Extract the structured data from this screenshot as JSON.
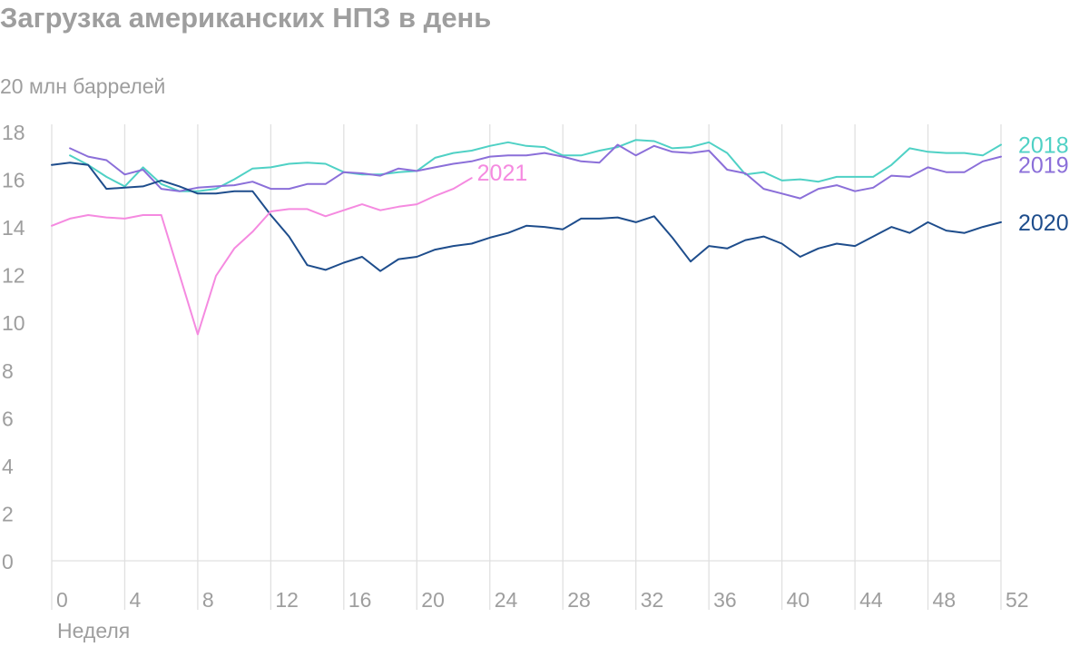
{
  "chart_data": {
    "type": "line",
    "title": "Загрузка американских НПЗ в день",
    "ylabel": "20 млн баррелей",
    "xlabel": "Неделя",
    "xlim": [
      0,
      52
    ],
    "ylim": [
      0,
      18
    ],
    "xticks": [
      0,
      4,
      8,
      12,
      16,
      20,
      24,
      28,
      32,
      36,
      40,
      44,
      48,
      52
    ],
    "yticks": [
      0,
      2,
      4,
      6,
      8,
      10,
      12,
      14,
      16,
      18
    ],
    "grid": "vertical",
    "series": [
      {
        "name": "2018",
        "color": "#4fd1c5",
        "x": [
          1,
          2,
          3,
          4,
          5,
          6,
          7,
          8,
          9,
          10,
          11,
          12,
          13,
          14,
          15,
          16,
          17,
          18,
          19,
          20,
          21,
          22,
          23,
          24,
          25,
          26,
          27,
          28,
          29,
          30,
          31,
          32,
          33,
          34,
          35,
          36,
          37,
          38,
          39,
          40,
          41,
          42,
          43,
          44,
          45,
          46,
          47,
          48,
          49,
          50,
          51,
          52
        ],
        "y": [
          17.0,
          16.6,
          16.1,
          15.7,
          16.5,
          15.8,
          15.5,
          15.5,
          15.6,
          16.0,
          16.45,
          16.5,
          16.65,
          16.7,
          16.65,
          16.3,
          16.2,
          16.2,
          16.3,
          16.35,
          16.9,
          17.1,
          17.2,
          17.4,
          17.55,
          17.4,
          17.35,
          17.0,
          17.0,
          17.2,
          17.35,
          17.65,
          17.6,
          17.3,
          17.35,
          17.55,
          17.1,
          16.2,
          16.3,
          15.95,
          16.0,
          15.9,
          16.1,
          16.1,
          16.1,
          16.6,
          17.3,
          17.15,
          17.1,
          17.1,
          17.0,
          17.45
        ]
      },
      {
        "name": "2019",
        "color": "#8b6fd9",
        "x": [
          1,
          2,
          3,
          4,
          5,
          6,
          7,
          8,
          9,
          10,
          11,
          12,
          13,
          14,
          15,
          16,
          17,
          18,
          19,
          20,
          21,
          22,
          23,
          24,
          25,
          26,
          27,
          28,
          29,
          30,
          31,
          32,
          33,
          34,
          35,
          36,
          37,
          38,
          39,
          40,
          41,
          42,
          43,
          44,
          45,
          46,
          47,
          48,
          49,
          50,
          51,
          52
        ],
        "y": [
          17.3,
          16.95,
          16.8,
          16.2,
          16.4,
          15.6,
          15.5,
          15.65,
          15.7,
          15.75,
          15.9,
          15.6,
          15.6,
          15.8,
          15.8,
          16.3,
          16.25,
          16.15,
          16.45,
          16.35,
          16.5,
          16.65,
          16.75,
          16.95,
          17.0,
          17.0,
          17.1,
          16.95,
          16.75,
          16.7,
          17.45,
          17.0,
          17.4,
          17.15,
          17.1,
          17.2,
          16.4,
          16.25,
          15.6,
          15.4,
          15.2,
          15.6,
          15.75,
          15.5,
          15.65,
          16.15,
          16.1,
          16.5,
          16.3,
          16.3,
          16.75,
          16.95
        ]
      },
      {
        "name": "2020",
        "color": "#1e4d8c",
        "x": [
          0,
          1,
          2,
          3,
          4,
          5,
          6,
          7,
          8,
          9,
          10,
          11,
          12,
          13,
          14,
          15,
          16,
          17,
          18,
          19,
          20,
          21,
          22,
          23,
          24,
          25,
          26,
          27,
          28,
          29,
          30,
          31,
          32,
          33,
          34,
          35,
          36,
          37,
          38,
          39,
          40,
          41,
          42,
          43,
          44,
          45,
          46,
          47,
          48,
          49,
          50,
          51,
          52
        ],
        "y": [
          16.6,
          16.7,
          16.6,
          15.6,
          15.65,
          15.7,
          15.95,
          15.7,
          15.4,
          15.4,
          15.5,
          15.5,
          14.5,
          13.6,
          12.4,
          12.2,
          12.5,
          12.75,
          12.15,
          12.65,
          12.75,
          13.05,
          13.2,
          13.3,
          13.55,
          13.75,
          14.05,
          14.0,
          13.9,
          14.35,
          14.35,
          14.4,
          14.2,
          14.45,
          13.55,
          12.55,
          13.2,
          13.1,
          13.45,
          13.6,
          13.3,
          12.75,
          13.1,
          13.3,
          13.2,
          13.6,
          14.0,
          13.75,
          14.2,
          13.85,
          13.75,
          14.0,
          14.2
        ]
      },
      {
        "name": "2021",
        "color": "#f58ae0",
        "x": [
          0,
          1,
          2,
          3,
          4,
          5,
          6,
          7,
          8,
          9,
          10,
          11,
          12,
          13,
          14,
          15,
          16,
          17,
          18,
          19,
          20,
          21,
          22,
          23
        ],
        "y": [
          14.05,
          14.35,
          14.5,
          14.4,
          14.35,
          14.5,
          14.5,
          12.0,
          9.5,
          11.95,
          13.1,
          13.8,
          14.65,
          14.75,
          14.75,
          14.45,
          14.7,
          14.95,
          14.7,
          14.85,
          14.95,
          15.3,
          15.6,
          16.05
        ]
      }
    ]
  }
}
